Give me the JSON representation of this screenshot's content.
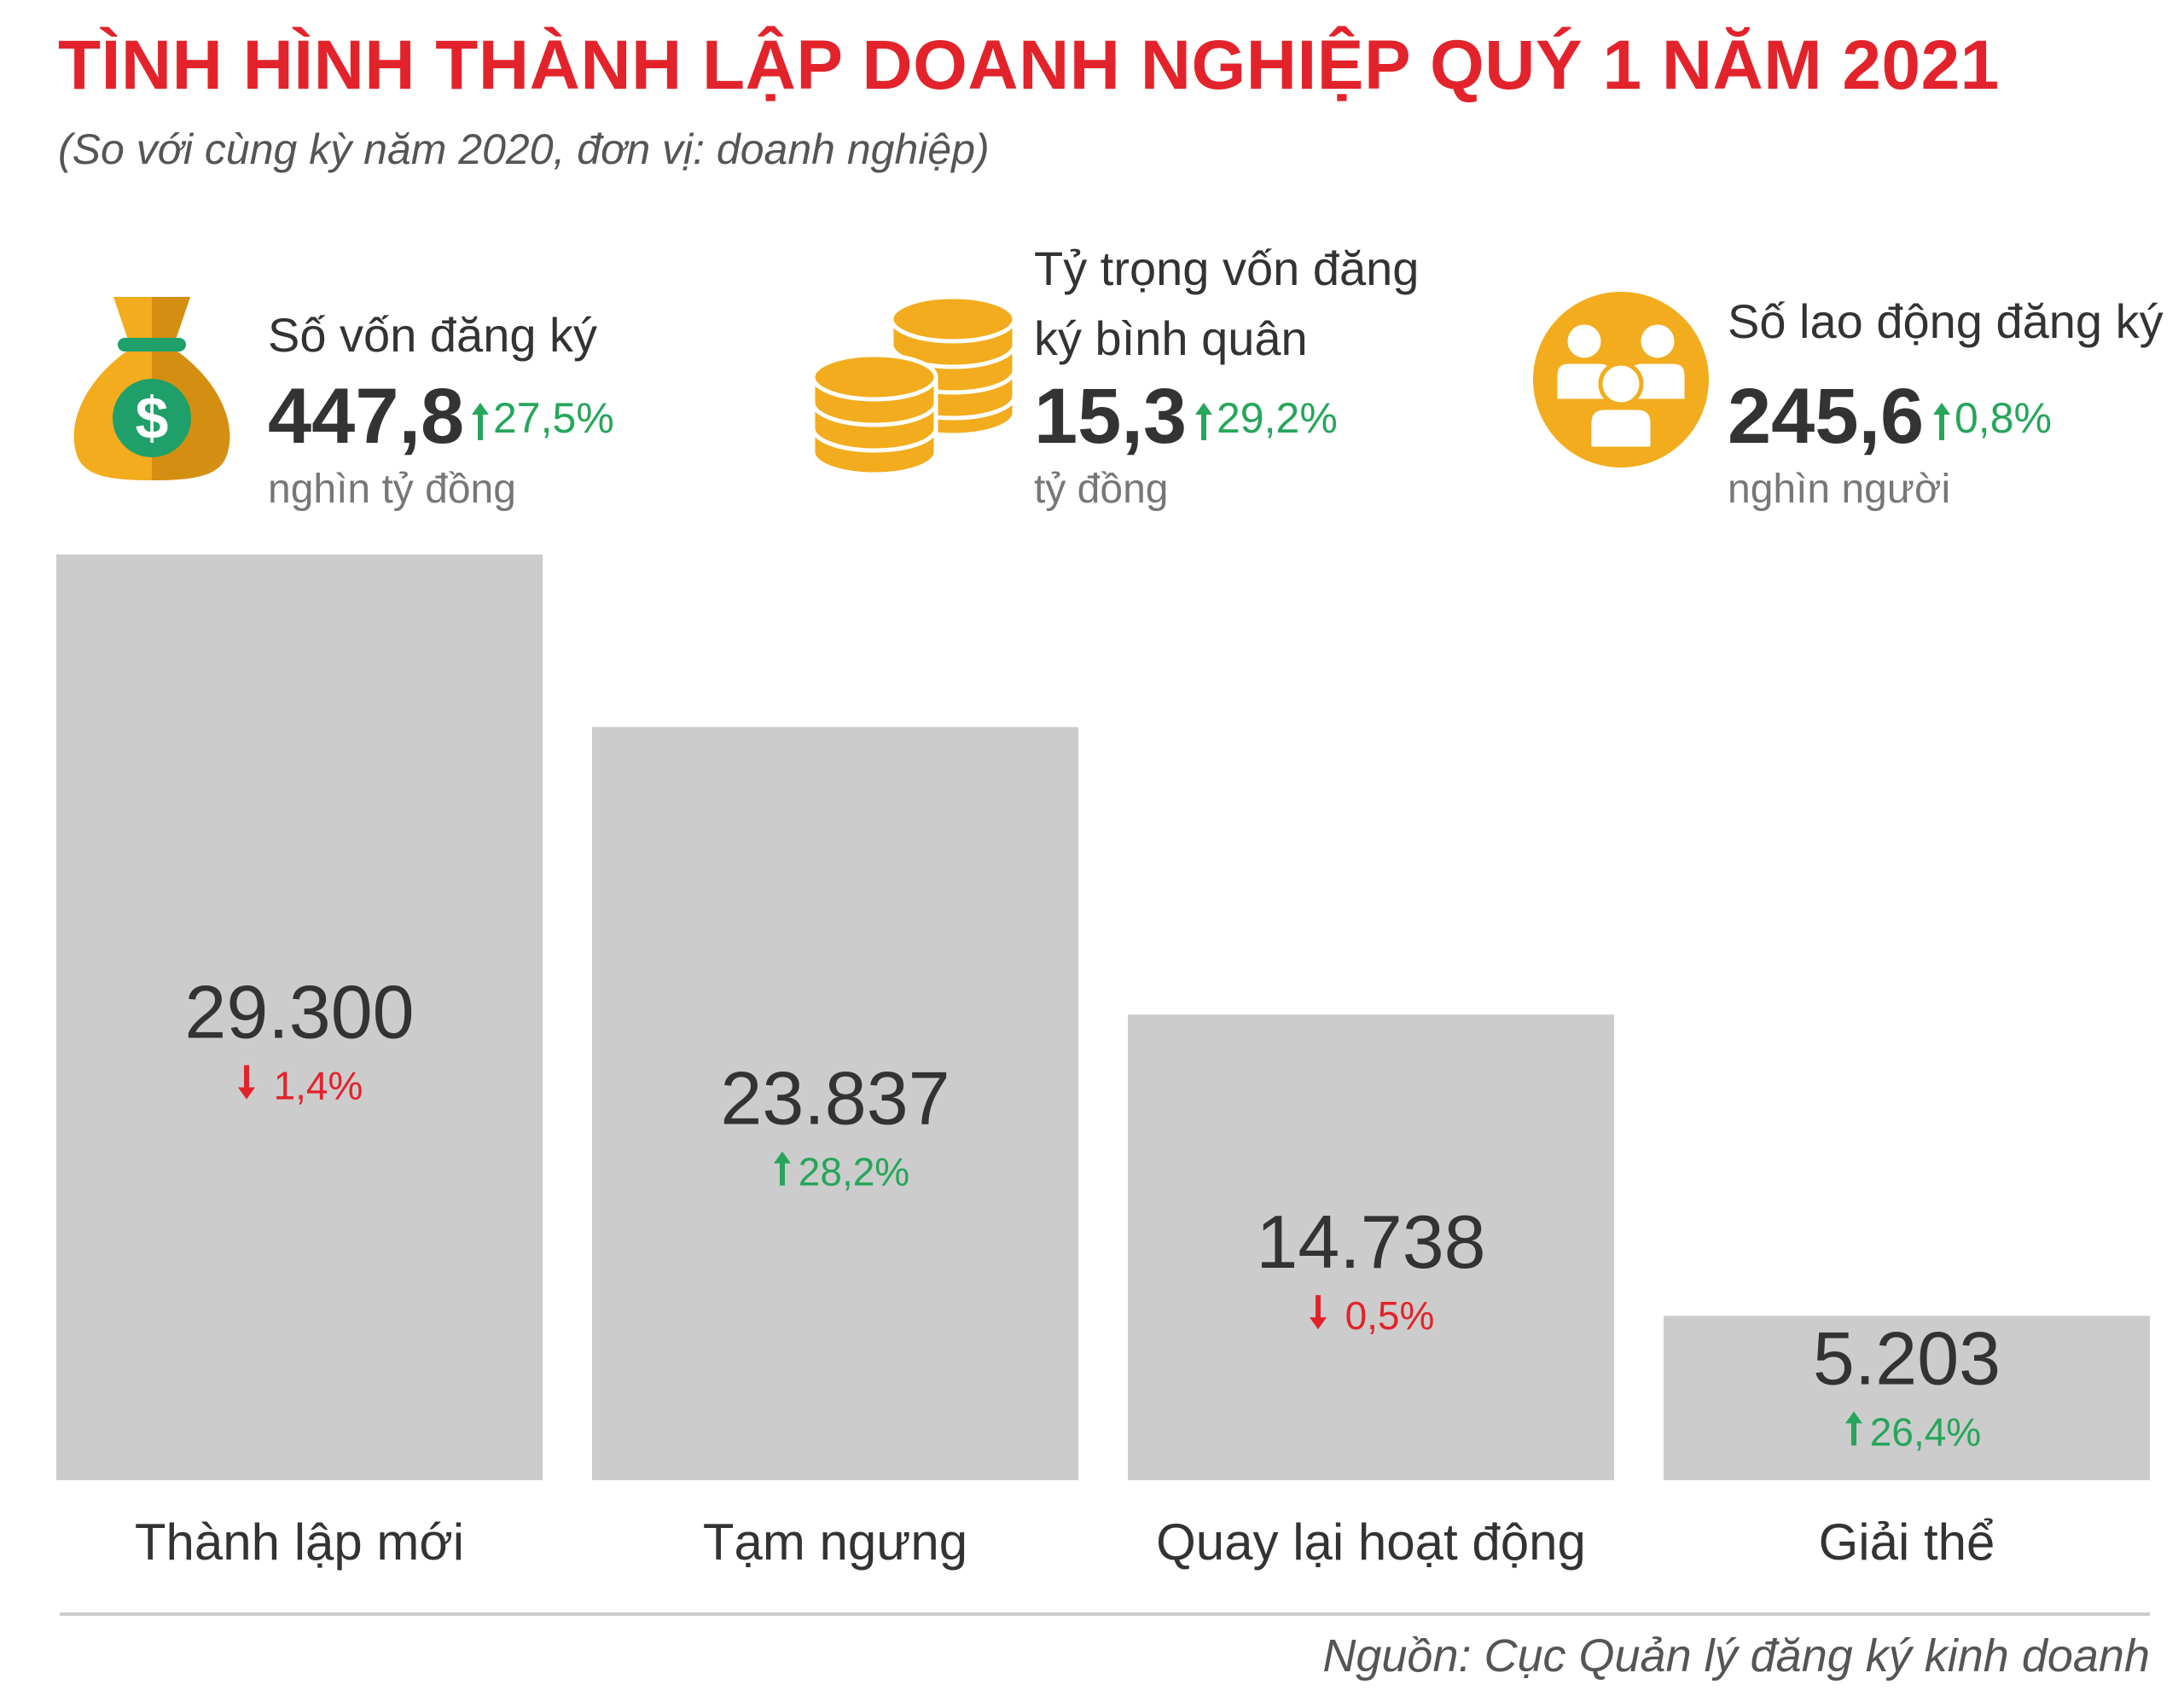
{
  "title": "TÌNH HÌNH THÀNH LẬP DOANH NGHIỆP QUÝ 1 NĂM 2021",
  "subtitle": "(So với cùng kỳ năm 2020, đơn vị: doanh nghiệp)",
  "stats": [
    {
      "icon": "money-bag-icon",
      "label_lines": [
        "Số vốn đăng ký"
      ],
      "value": "447,8",
      "change": "27,5%",
      "direction": "up",
      "unit": "nghìn tỷ đồng"
    },
    {
      "icon": "coins-icon",
      "label_lines": [
        "Tỷ trọng vốn đăng",
        "ký bình quân"
      ],
      "value": "15,3",
      "change": "29,2%",
      "direction": "up",
      "unit": "tỷ đồng"
    },
    {
      "icon": "people-icon",
      "label_lines": [
        "Số lao động đăng ký"
      ],
      "value": "245,6",
      "change": "0,8%",
      "direction": "up",
      "unit": "nghìn người"
    }
  ],
  "chart_data": {
    "type": "bar",
    "categories": [
      "Thành lập mới",
      "Tạm ngưng",
      "Quay lại hoạt động",
      "Giải thể"
    ],
    "values": [
      29300,
      23837,
      14738,
      5203
    ],
    "value_labels": [
      "29.300",
      "23.837",
      "14.738",
      "5.203"
    ],
    "changes": [
      "1,4%",
      "28,2%",
      "0,5%",
      "26,4%"
    ],
    "change_directions": [
      "down",
      "up",
      "down",
      "up"
    ],
    "ylim": [
      0,
      29300
    ],
    "grid": false,
    "bar_color": "#cccccc"
  },
  "colors": {
    "title": "#e3232b",
    "up": "#26a65b",
    "down": "#e3232b",
    "icon": "#f2ac1d",
    "icon_dark": "#d48f12",
    "dollar": "#1fa06a"
  },
  "source": "Nguồn: Cục Quản lý đăng ký kinh doanh"
}
